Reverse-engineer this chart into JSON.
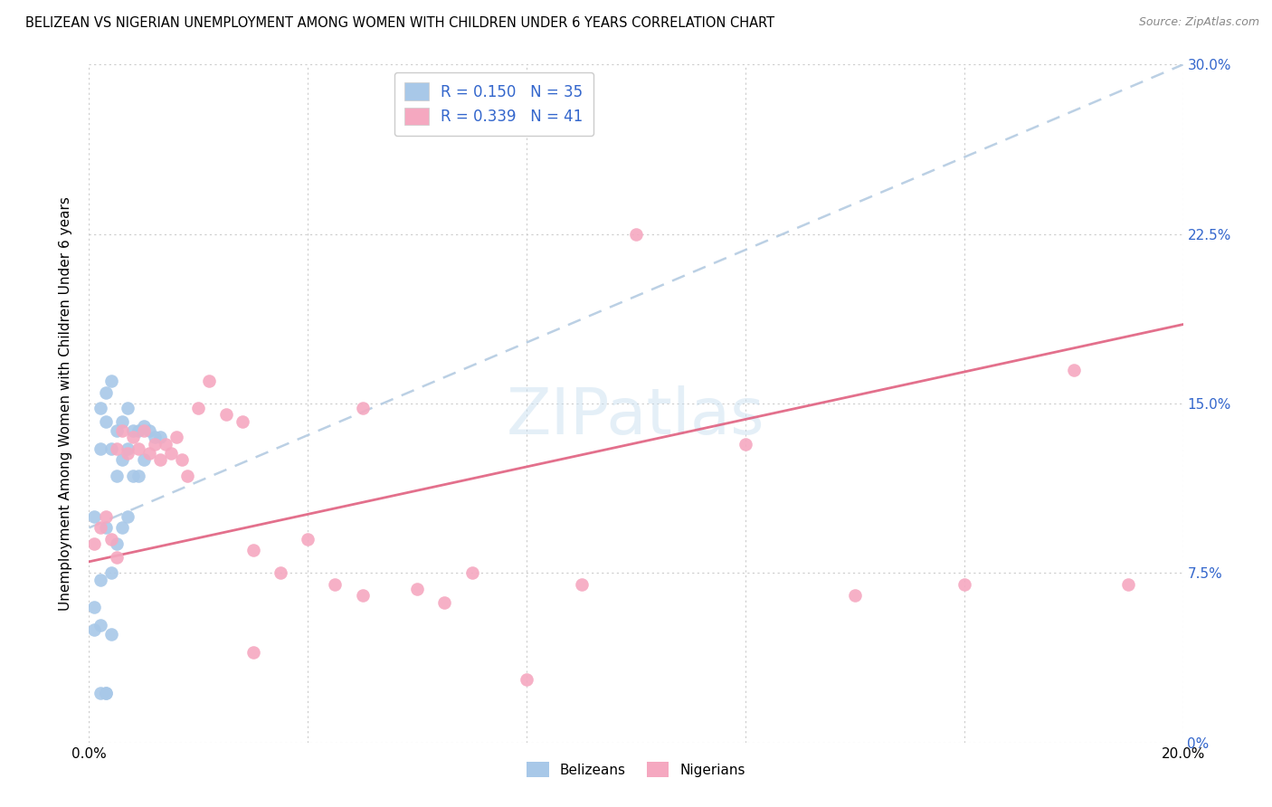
{
  "title": "BELIZEAN VS NIGERIAN UNEMPLOYMENT AMONG WOMEN WITH CHILDREN UNDER 6 YEARS CORRELATION CHART",
  "source": "Source: ZipAtlas.com",
  "ylabel": "Unemployment Among Women with Children Under 6 years",
  "xlim": [
    0.0,
    0.2
  ],
  "ylim": [
    0.0,
    0.3
  ],
  "xtick_vals": [
    0.0,
    0.04,
    0.08,
    0.12,
    0.16,
    0.2
  ],
  "xtick_labels": [
    "0.0%",
    "",
    "",
    "",
    "",
    "20.0%"
  ],
  "ytick_vals": [
    0.0,
    0.075,
    0.15,
    0.225,
    0.3
  ],
  "ytick_labels_right": [
    "0%",
    "7.5%",
    "15.0%",
    "22.5%",
    "30.0%"
  ],
  "belizean_R": 0.15,
  "belizean_N": 35,
  "nigerian_R": 0.339,
  "nigerian_N": 41,
  "belizean_color": "#a8c8e8",
  "nigerian_color": "#f5a8c0",
  "bel_line_color": "#aaccee",
  "nig_line_color": "#e06080",
  "legend_text_color": "#3366cc",
  "watermark": "ZIPatlas",
  "belizean_x": [
    0.001,
    0.002,
    0.002,
    0.002,
    0.003,
    0.003,
    0.003,
    0.004,
    0.004,
    0.004,
    0.005,
    0.005,
    0.005,
    0.006,
    0.006,
    0.006,
    0.007,
    0.007,
    0.007,
    0.008,
    0.008,
    0.009,
    0.009,
    0.01,
    0.01,
    0.011,
    0.012,
    0.013,
    0.001,
    0.001,
    0.002,
    0.002,
    0.003,
    0.003,
    0.004
  ],
  "belizean_y": [
    0.1,
    0.148,
    0.13,
    0.072,
    0.155,
    0.142,
    0.095,
    0.16,
    0.13,
    0.075,
    0.138,
    0.118,
    0.088,
    0.142,
    0.125,
    0.095,
    0.148,
    0.13,
    0.1,
    0.138,
    0.118,
    0.138,
    0.118,
    0.14,
    0.125,
    0.138,
    0.135,
    0.135,
    0.06,
    0.05,
    0.052,
    0.022,
    0.022,
    0.022,
    0.048
  ],
  "nigerian_x": [
    0.001,
    0.002,
    0.003,
    0.004,
    0.005,
    0.005,
    0.006,
    0.007,
    0.008,
    0.009,
    0.01,
    0.011,
    0.012,
    0.013,
    0.014,
    0.015,
    0.016,
    0.017,
    0.018,
    0.02,
    0.022,
    0.025,
    0.028,
    0.03,
    0.035,
    0.04,
    0.045,
    0.05,
    0.06,
    0.065,
    0.07,
    0.08,
    0.09,
    0.1,
    0.12,
    0.14,
    0.16,
    0.18,
    0.19,
    0.05,
    0.03
  ],
  "nigerian_y": [
    0.088,
    0.095,
    0.1,
    0.09,
    0.13,
    0.082,
    0.138,
    0.128,
    0.135,
    0.13,
    0.138,
    0.128,
    0.132,
    0.125,
    0.132,
    0.128,
    0.135,
    0.125,
    0.118,
    0.148,
    0.16,
    0.145,
    0.142,
    0.085,
    0.075,
    0.09,
    0.07,
    0.148,
    0.068,
    0.062,
    0.075,
    0.028,
    0.07,
    0.225,
    0.132,
    0.065,
    0.07,
    0.165,
    0.07,
    0.065,
    0.04
  ],
  "bel_line_x": [
    0.0,
    0.2
  ],
  "bel_line_y": [
    0.095,
    0.3
  ],
  "nig_line_x": [
    0.0,
    0.2
  ],
  "nig_line_y": [
    0.08,
    0.185
  ]
}
